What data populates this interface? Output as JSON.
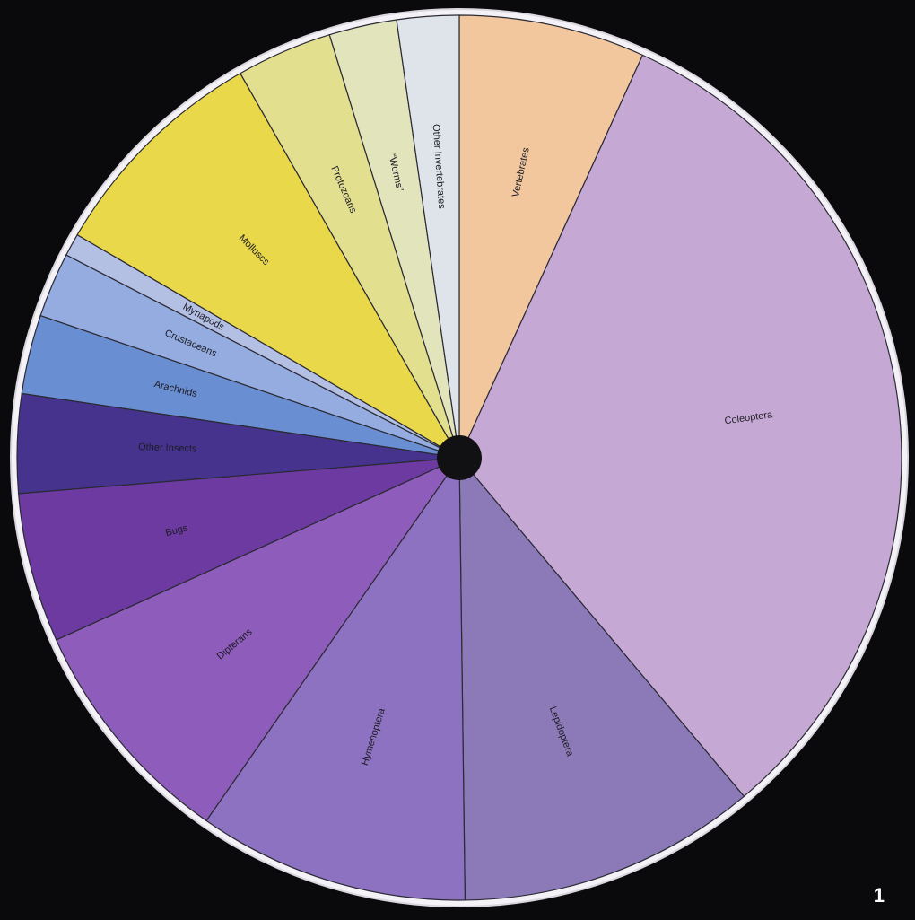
{
  "figure_number": "1",
  "chart_data": {
    "type": "pie",
    "start_angle_deg": -90,
    "direction": "clockwise",
    "slices": [
      {
        "label": "Vertebrates",
        "value": 6.6,
        "color": "#f2c79e"
      },
      {
        "label": "Coleoptera",
        "value": 31.1,
        "color": "#c6a8d4"
      },
      {
        "label": "Lepidoptera",
        "value": 10.6,
        "color": "#8c7ab8"
      },
      {
        "label": "Hymenoptera",
        "value": 9.6,
        "color": "#8e72c2"
      },
      {
        "label": "Dipterans",
        "value": 8.3,
        "color": "#8e5cba"
      },
      {
        "label": "Bugs",
        "value": 5.3,
        "color": "#6c3aa0"
      },
      {
        "label": "Other Insects",
        "value": 3.5,
        "color": "#45338e"
      },
      {
        "label": "Arachnids",
        "value": 2.8,
        "color": "#6a8ed2"
      },
      {
        "label": "Crustaceans",
        "value": 2.3,
        "color": "#94ace0"
      },
      {
        "label": "Myriapods",
        "value": 0.8,
        "color": "#b4bfe4"
      },
      {
        "label": "Molluscs",
        "value": 8.1,
        "color": "#e8d84a"
      },
      {
        "label": "Protozoans",
        "value": 3.4,
        "color": "#e2df8e"
      },
      {
        "label": "“Worms”",
        "value": 2.4,
        "color": "#e2e4bc"
      },
      {
        "label": "Other Invertebrates",
        "value": 2.2,
        "color": "#dfe3ea"
      }
    ]
  }
}
